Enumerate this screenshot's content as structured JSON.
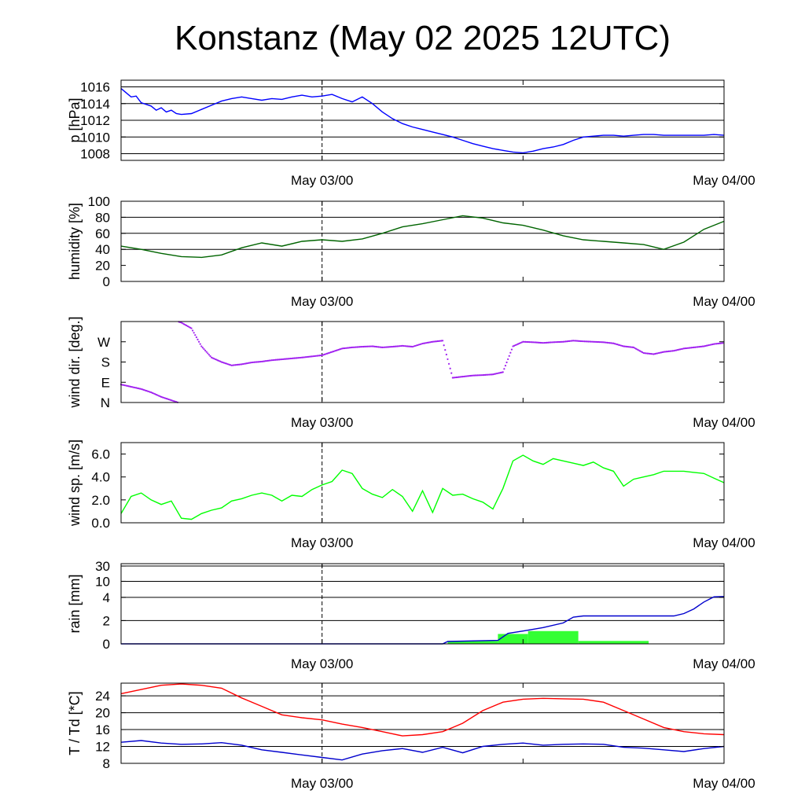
{
  "title": "Konstanz (May 02 2025 12UTC)",
  "chart_data": [
    {
      "type": "line",
      "key": "pressure",
      "ylabel": "p [hPa]",
      "ylim": [
        1007.2,
        1016.8
      ],
      "yticks": [
        1008,
        1010,
        1012,
        1014,
        1016
      ],
      "ytick_labels": [
        "1008",
        "1010",
        "1012",
        "1014",
        "1016"
      ],
      "grid_y": [
        1008,
        1010,
        1012,
        1014,
        1016
      ],
      "x_tick_labels": [
        "May 03/00",
        "May 04/00"
      ],
      "series": [
        {
          "color": "#0000ff",
          "x": [
            0,
            0.5,
            1,
            1.5,
            2,
            2.5,
            3,
            3.5,
            4,
            4.5,
            5,
            5.5,
            6,
            7,
            8,
            9,
            10,
            11,
            12,
            13,
            14,
            15,
            16,
            17,
            18,
            19,
            20,
            21,
            22,
            23,
            24,
            25,
            26,
            27,
            28,
            29,
            30,
            31,
            32,
            33,
            34,
            35,
            36,
            37,
            38,
            39,
            40,
            41,
            42,
            43,
            44,
            45,
            46,
            47,
            48,
            49,
            50,
            51,
            52,
            53,
            54,
            55,
            56,
            57,
            58,
            59,
            60
          ],
          "y": [
            1015.8,
            1015.3,
            1014.8,
            1014.9,
            1014.1,
            1013.9,
            1013.7,
            1013.2,
            1013.5,
            1013.0,
            1013.2,
            1012.8,
            1012.7,
            1012.8,
            1013.3,
            1013.8,
            1014.3,
            1014.6,
            1014.8,
            1014.6,
            1014.4,
            1014.6,
            1014.5,
            1014.8,
            1015.0,
            1014.8,
            1014.9,
            1015.1,
            1014.6,
            1014.2,
            1014.8,
            1014.0,
            1013.0,
            1012.2,
            1011.6,
            1011.2,
            1010.9,
            1010.6,
            1010.3,
            1010.0,
            1009.6,
            1009.2,
            1008.9,
            1008.6,
            1008.4,
            1008.2,
            1008.1,
            1008.3,
            1008.6,
            1008.8,
            1009.1,
            1009.6,
            1010.0,
            1010.1,
            1010.2,
            1010.2,
            1010.1,
            1010.2,
            1010.3,
            1010.3,
            1010.2,
            1010.2,
            1010.2,
            1010.2,
            1010.2,
            1010.3,
            1010.2
          ]
        }
      ]
    },
    {
      "type": "line",
      "key": "humidity",
      "ylabel": "humidity [%]",
      "ylim": [
        0,
        100
      ],
      "yticks": [
        0,
        20,
        40,
        60,
        80,
        100
      ],
      "ytick_labels": [
        "0",
        "20",
        "40",
        "60",
        "80",
        "100"
      ],
      "grid_y": [
        40,
        60,
        80
      ],
      "x_tick_labels": [
        "May 03/00",
        "May 04/00"
      ],
      "series": [
        {
          "color": "#006400",
          "x": [
            0,
            2,
            4,
            6,
            8,
            10,
            12,
            14,
            16,
            18,
            20,
            22,
            24,
            26,
            28,
            30,
            32,
            34,
            36,
            38,
            40,
            42,
            44,
            46,
            48,
            50,
            52,
            54,
            56,
            58,
            60
          ],
          "y": [
            44,
            40,
            35,
            31,
            30,
            33,
            42,
            48,
            44,
            50,
            52,
            50,
            53,
            60,
            68,
            72,
            77,
            82,
            79,
            73,
            70,
            64,
            57,
            52,
            50,
            48,
            46,
            40,
            49,
            65,
            75
          ]
        }
      ]
    },
    {
      "type": "scatter",
      "key": "wind_direction",
      "ylabel": "wind dir. [deg.]",
      "ylim": [
        0,
        360
      ],
      "yticks": [
        0,
        90,
        180,
        270
      ],
      "ytick_labels": [
        "N",
        "E",
        "S",
        "W"
      ],
      "grid_y": [],
      "x_tick_labels": [
        "May 03/00",
        "May 04/00"
      ],
      "series": [
        {
          "color": "#a020f0",
          "x": [
            0,
            1,
            2,
            3,
            4,
            5,
            6,
            7,
            8,
            9,
            10,
            11,
            12,
            13,
            14,
            15,
            16,
            17,
            18,
            19,
            20,
            21,
            22,
            23,
            24,
            25,
            26,
            27,
            28,
            29,
            30,
            31,
            32,
            33,
            34,
            35,
            36,
            37,
            38,
            39,
            40,
            41,
            42,
            43,
            44,
            45,
            46,
            47,
            48,
            49,
            50,
            51,
            52,
            53,
            54,
            55,
            56,
            57,
            58,
            59,
            60
          ],
          "y": [
            80,
            70,
            60,
            45,
            25,
            10,
            355,
            330,
            250,
            200,
            180,
            165,
            170,
            178,
            182,
            188,
            192,
            196,
            200,
            205,
            210,
            225,
            240,
            245,
            248,
            250,
            245,
            248,
            252,
            248,
            262,
            270,
            275,
            110,
            115,
            120,
            122,
            125,
            135,
            250,
            270,
            268,
            265,
            268,
            270,
            275,
            272,
            270,
            268,
            263,
            250,
            245,
            220,
            215,
            225,
            230,
            240,
            245,
            250,
            260,
            265
          ]
        }
      ]
    },
    {
      "type": "line",
      "key": "wind_speed",
      "ylabel": "wind sp. [m/s]",
      "ylim": [
        0,
        7
      ],
      "yticks": [
        0,
        2,
        4,
        6
      ],
      "ytick_labels": [
        "0.0",
        "2.0",
        "4.0",
        "6.0"
      ],
      "grid_y": [],
      "x_tick_labels": [
        "May 03/00",
        "May 04/00"
      ],
      "series": [
        {
          "color": "#00ff00",
          "x": [
            0,
            1,
            2,
            3,
            4,
            5,
            6,
            7,
            8,
            9,
            10,
            11,
            12,
            13,
            14,
            15,
            16,
            17,
            18,
            19,
            20,
            21,
            22,
            23,
            24,
            25,
            26,
            27,
            28,
            29,
            30,
            31,
            32,
            33,
            34,
            35,
            36,
            37,
            38,
            39,
            40,
            41,
            42,
            43,
            44,
            45,
            46,
            47,
            48,
            49,
            50,
            51,
            52,
            53,
            54,
            55,
            56,
            57,
            58,
            59,
            60
          ],
          "y": [
            0.8,
            2.3,
            2.6,
            2.0,
            1.6,
            1.9,
            0.4,
            0.3,
            0.8,
            1.1,
            1.3,
            1.9,
            2.1,
            2.4,
            2.6,
            2.4,
            1.9,
            2.4,
            2.3,
            2.9,
            3.3,
            3.6,
            4.6,
            4.3,
            3.0,
            2.5,
            2.2,
            2.9,
            2.3,
            1.0,
            2.8,
            0.9,
            3.0,
            2.4,
            2.5,
            2.1,
            1.8,
            1.2,
            3.0,
            5.4,
            5.9,
            5.4,
            5.1,
            5.6,
            5.4,
            5.2,
            5.0,
            5.3,
            4.8,
            4.5,
            3.2,
            3.8,
            4.0,
            4.2,
            4.5,
            4.5,
            4.5,
            4.4,
            4.3,
            3.9,
            3.5
          ]
        }
      ]
    },
    {
      "type": "bar+line",
      "key": "rain",
      "ylabel": "rain [mm]",
      "yticks": [
        0,
        2,
        4,
        10,
        30
      ],
      "ytick_labels": [
        "0",
        "2",
        "4",
        "10",
        "30"
      ],
      "grid_y": [
        2,
        4,
        10,
        30
      ],
      "x_tick_labels": [
        "May 03/00",
        "May 04/00"
      ],
      "bars": {
        "color": "#33ff33",
        "x_start": [
          32.5,
          37.5,
          40.5,
          45.5
        ],
        "x_end": [
          37.5,
          40.5,
          45.5,
          52.5
        ],
        "values": [
          0.25,
          0.85,
          1.1,
          0.25
        ]
      },
      "series": [
        {
          "color": "#0000cd",
          "x": [
            0,
            32,
            32.5,
            37.5,
            38.5,
            40,
            42,
            44,
            45,
            46,
            52,
            55,
            56,
            57,
            58,
            59,
            60
          ],
          "y": [
            0,
            0,
            0.2,
            0.3,
            0.9,
            1.1,
            1.4,
            1.8,
            2.3,
            2.4,
            2.4,
            2.4,
            2.6,
            3.0,
            3.6,
            4.2,
            4.3
          ]
        }
      ]
    },
    {
      "type": "line",
      "key": "temperature",
      "ylabel": "T / Td [*C]",
      "ylim": [
        8,
        27
      ],
      "yticks": [
        8,
        12,
        16,
        20,
        24
      ],
      "ytick_labels": [
        "8",
        "12",
        "16",
        "20",
        "24"
      ],
      "grid_y": [
        8,
        12,
        16,
        20,
        24
      ],
      "x_tick_labels": [
        "May 03/00",
        "May 04/00"
      ],
      "series": [
        {
          "color": "#ff0000",
          "x": [
            0,
            2,
            4,
            6,
            8,
            10,
            12,
            14,
            16,
            18,
            20,
            22,
            24,
            26,
            28,
            30,
            32,
            33,
            34,
            36,
            38,
            40,
            42,
            44,
            46,
            48,
            50,
            52,
            54,
            56,
            58,
            60
          ],
          "y": [
            24.5,
            25.5,
            26.5,
            26.8,
            26.5,
            25.8,
            23.5,
            21.5,
            19.5,
            18.8,
            18.3,
            17.3,
            16.5,
            15.5,
            14.5,
            14.8,
            15.5,
            16.5,
            17.5,
            20.5,
            22.5,
            23.2,
            23.4,
            23.3,
            23.2,
            22.5,
            20.5,
            18.5,
            16.5,
            15.5,
            15.0,
            14.8
          ]
        },
        {
          "color": "#0000cd",
          "x": [
            0,
            2,
            4,
            6,
            8,
            10,
            12,
            14,
            16,
            18,
            20,
            22,
            24,
            26,
            28,
            30,
            32,
            34,
            36,
            38,
            40,
            42,
            44,
            46,
            48,
            50,
            52,
            54,
            56,
            58,
            60
          ],
          "y": [
            13.0,
            13.4,
            12.8,
            12.5,
            12.6,
            12.9,
            12.3,
            11.2,
            10.6,
            10.0,
            9.4,
            8.8,
            10.2,
            11.0,
            11.5,
            10.6,
            11.8,
            10.5,
            12.0,
            12.5,
            12.8,
            12.3,
            12.5,
            12.6,
            12.5,
            11.8,
            11.6,
            11.2,
            10.8,
            11.5,
            12.0
          ]
        }
      ]
    }
  ]
}
